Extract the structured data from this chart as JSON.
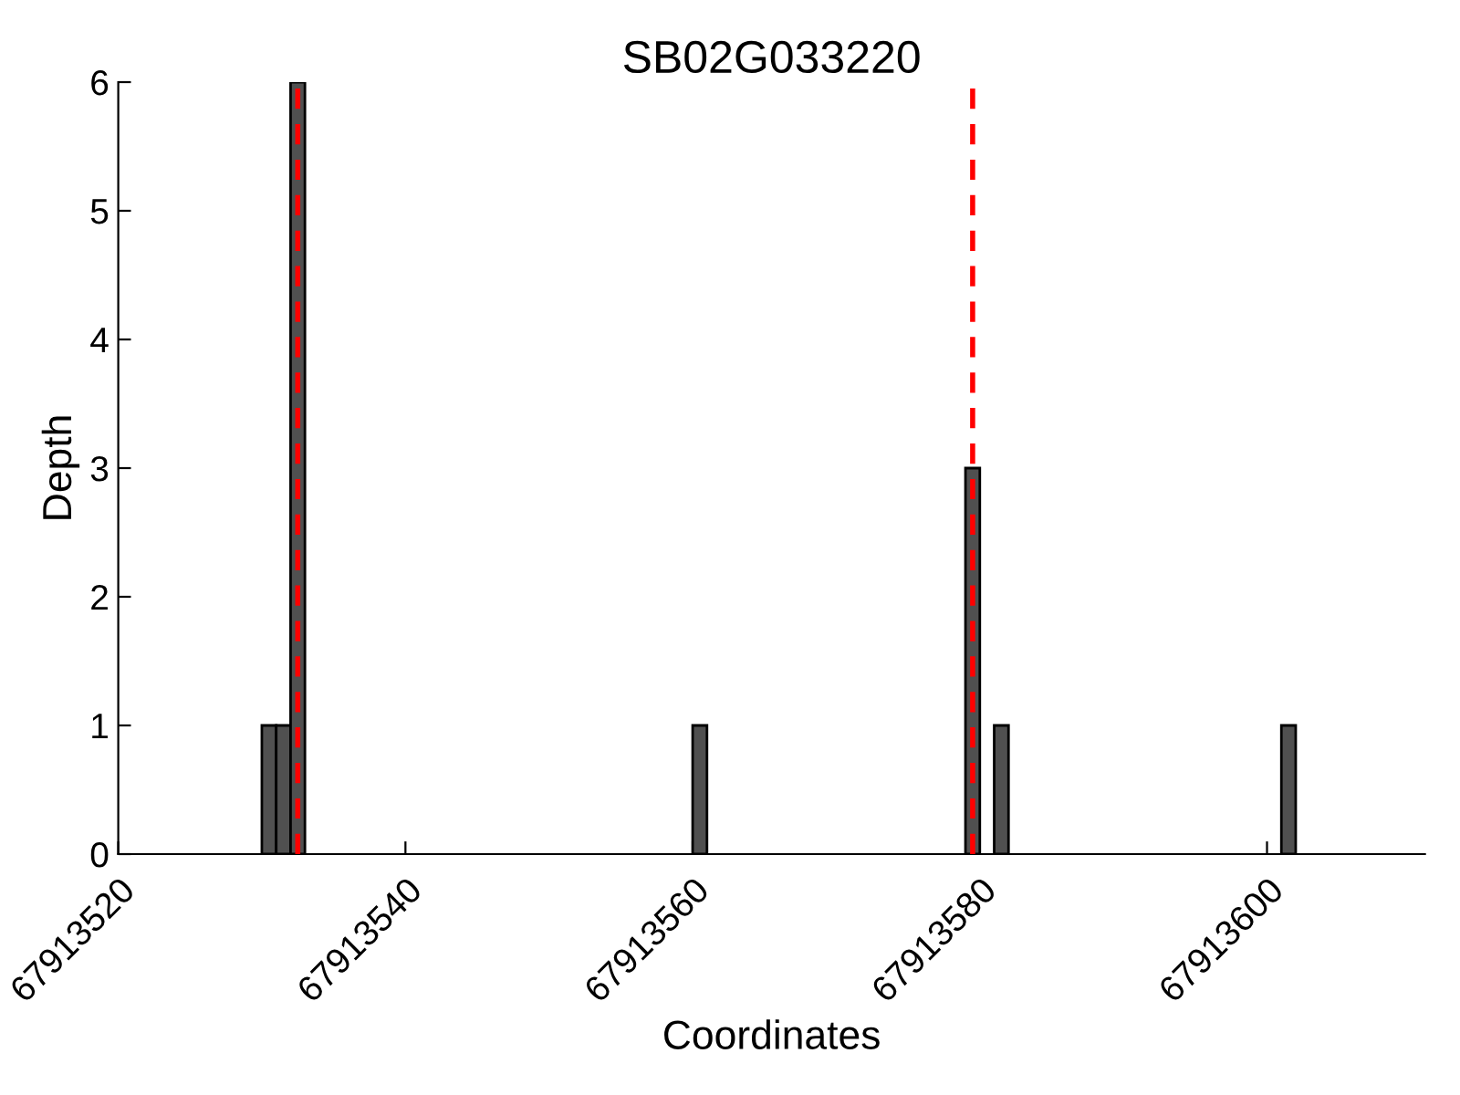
{
  "chart_data": {
    "type": "bar",
    "title": "SB02G033220",
    "xlabel": "Coordinates",
    "ylabel": "Depth",
    "x": [
      67913530.5,
      67913531.5,
      67913532.5,
      67913560.5,
      67913579.5,
      67913581.5,
      67913601.5
    ],
    "values": [
      1,
      1,
      6,
      1,
      3,
      1,
      1
    ],
    "color": "#505050",
    "xlim": [
      67913520,
      67913611
    ],
    "xticks": [
      67913520,
      67913540,
      67913560,
      67913580,
      67913600
    ],
    "ylim": [
      0,
      6
    ],
    "yticks": [
      0,
      1,
      2,
      3,
      4,
      5,
      6
    ],
    "ref_lines": [
      {
        "axis": "x",
        "value": 67913532.5,
        "color": "#ff0000",
        "line_style": "dashed"
      },
      {
        "axis": "x",
        "value": 67913579.5,
        "color": "#ff0000",
        "line_style": "dashed"
      }
    ],
    "grid": false
  }
}
